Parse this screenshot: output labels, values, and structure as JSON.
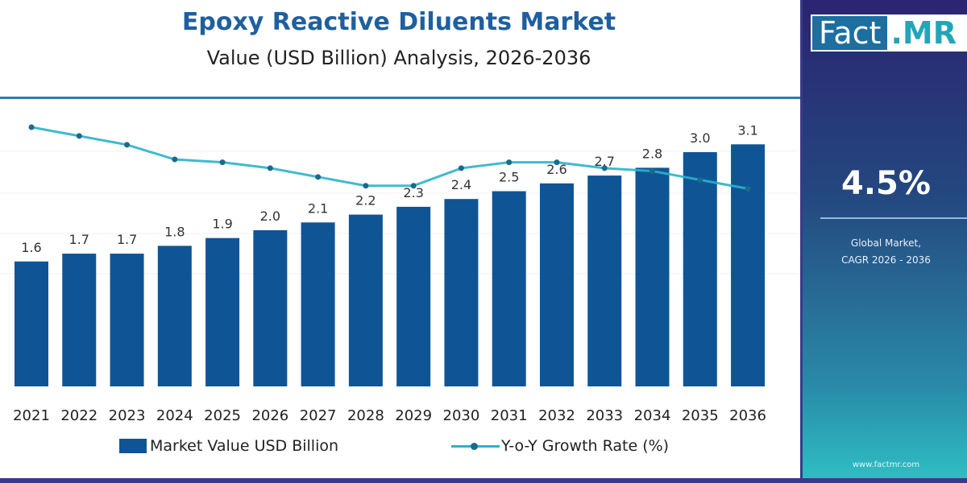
{
  "chart_data": {
    "type": "bar+line",
    "title": "Epoxy Reactive Diluents Market",
    "subtitle": "Value (USD Billion) Analysis, 2026-2036",
    "categories": [
      "2021",
      "2022",
      "2023",
      "2024",
      "2025",
      "2026",
      "2027",
      "2028",
      "2029",
      "2030",
      "2031",
      "2032",
      "2033",
      "2034",
      "2035",
      "2036"
    ],
    "series": [
      {
        "name": "Market Value USD Billion",
        "type": "bar",
        "color": "#0f5596",
        "values": [
          1.6,
          1.7,
          1.7,
          1.8,
          1.9,
          2.0,
          2.1,
          2.2,
          2.3,
          2.4,
          2.5,
          2.6,
          2.7,
          2.8,
          3.0,
          3.1
        ],
        "labels": [
          "1.6",
          "1.7",
          "1.7",
          "1.8",
          "1.9",
          "2.0",
          "2.1",
          "2.2",
          "2.3",
          "2.4",
          "2.5",
          "2.6",
          "2.7",
          "2.8",
          "3.0",
          "3.1"
        ]
      },
      {
        "name": "Y-o-Y Growth Rate (%)",
        "type": "line",
        "color": "#2bb3c9",
        "values": [
          6.5,
          6.2,
          5.9,
          5.4,
          5.3,
          5.1,
          4.8,
          4.5,
          4.5,
          5.1,
          5.3,
          5.3,
          5.1,
          5.0,
          4.7,
          4.4
        ]
      }
    ],
    "grid": true,
    "legend": "bottom"
  },
  "panel": {
    "logo_left": "Fact",
    "logo_right": ".MR",
    "cagr": "4.5%",
    "label_line1": "Global Market,",
    "label_line2": "CAGR 2026 - 2036",
    "website": "www.factmr.com"
  }
}
